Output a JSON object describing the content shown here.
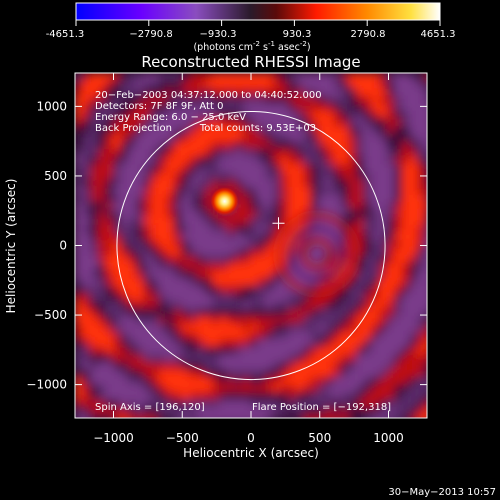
{
  "colorbar": {
    "ticks": [
      "-4651.3",
      "−2790.8",
      "−930.3",
      "930.3",
      "2790.8",
      "4651.3"
    ],
    "values": [
      -4651.3,
      -2790.8,
      -930.3,
      930.3,
      2790.8,
      4651.3
    ],
    "unit_a": "(photons cm",
    "unit_b": "-2",
    "unit_c": " s",
    "unit_d": "-1",
    "unit_e": " asec",
    "unit_f": "-2",
    "unit_g": ")"
  },
  "chart_data": {
    "type": "heatmap",
    "title": "Reconstructed RHESSI Image",
    "xlabel": "Heliocentric X (arcsec)",
    "ylabel": "Heliocentric Y (arcsec)",
    "xlim": [
      -1280,
      1280
    ],
    "ylim": [
      -1240,
      1240
    ],
    "x_ticks": [
      -1000,
      -500,
      0,
      500,
      1000
    ],
    "x_tick_labels": [
      "−1000",
      "−500",
      "0",
      "500",
      "1000"
    ],
    "y_ticks": [
      -1000,
      -500,
      0,
      500,
      1000
    ],
    "y_tick_labels": [
      "−1000",
      "−500",
      "0",
      "500",
      "1000"
    ],
    "solar_limb_radius": 975,
    "disk_center": [
      0,
      0
    ],
    "sources": [
      {
        "x": -192,
        "y": 318,
        "peak": 4651.3,
        "label": "flare"
      }
    ],
    "crosshair": [
      200,
      160
    ],
    "colorbar_range": [
      -4651.3,
      4651.3
    ],
    "colormap": [
      "#0000ff",
      "#7b00ff",
      "#3a1f3a",
      "#ff0000",
      "#ffaa00",
      "#ffffff"
    ]
  },
  "info": {
    "time_range": "20−Feb−2003 04:37:12.000 to 04:40:52.000",
    "detectors": "Detectors: 7F 8F 9F, Att 0",
    "energy": "Energy Range: 6.0 − 25.0 keV",
    "method": "Back Projection",
    "total_counts": "Total counts: 9.53E+03"
  },
  "footer": {
    "spin_axis": "Spin Axis = [196,120]",
    "flare_position": "Flare Position = [−192,318]",
    "date_stamp": "30−May−2013 10:57"
  }
}
